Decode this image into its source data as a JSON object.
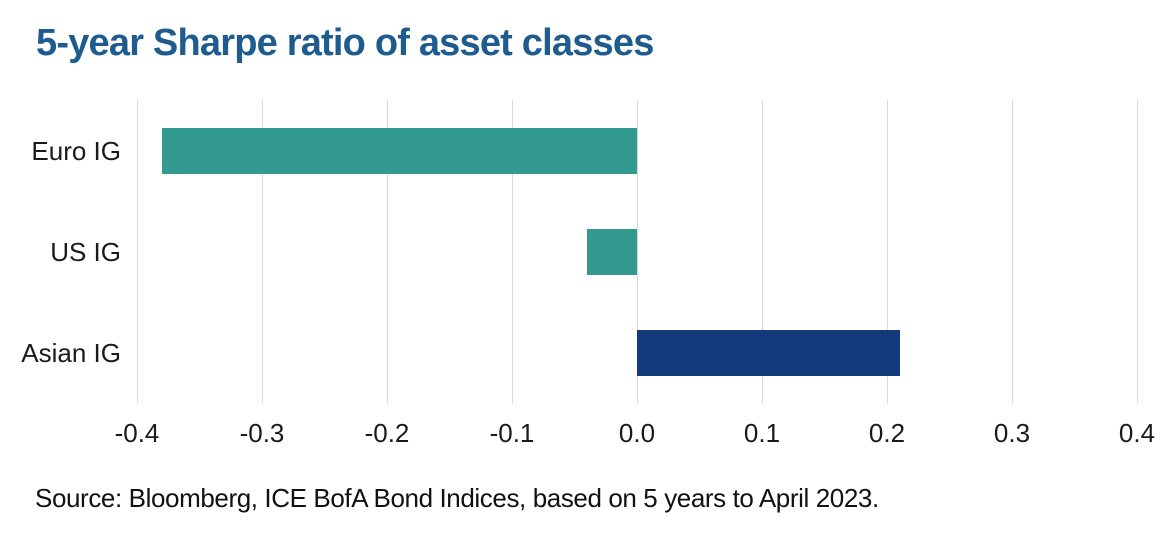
{
  "title": {
    "text": "5-year Sharpe ratio of asset classes",
    "color": "#1E5C90"
  },
  "source_note": "Source: Bloomberg, ICE BofA Bond Indices, based on 5 years to April 2023.",
  "chart_data": {
    "type": "bar",
    "orientation": "horizontal",
    "title": "5-year Sharpe ratio of asset classes",
    "categories": [
      "Euro IG",
      "US IG",
      "Asian IG"
    ],
    "values": [
      -0.38,
      -0.04,
      0.21
    ],
    "bar_colors": [
      "#339A90",
      "#339A90",
      "#123A7C"
    ],
    "xlabel": "",
    "ylabel": "",
    "xlim": [
      -0.4,
      0.4
    ],
    "xticks": [
      -0.4,
      -0.3,
      -0.2,
      -0.1,
      0.0,
      0.1,
      0.2,
      0.3,
      0.4
    ],
    "xtick_labels": [
      "-0.4",
      "-0.3",
      "-0.2",
      "-0.1",
      "0.0",
      "0.1",
      "0.2",
      "0.3",
      "0.4"
    ],
    "grid": "vertical",
    "gridline_color": "#D9D9D9",
    "legend": "none"
  }
}
